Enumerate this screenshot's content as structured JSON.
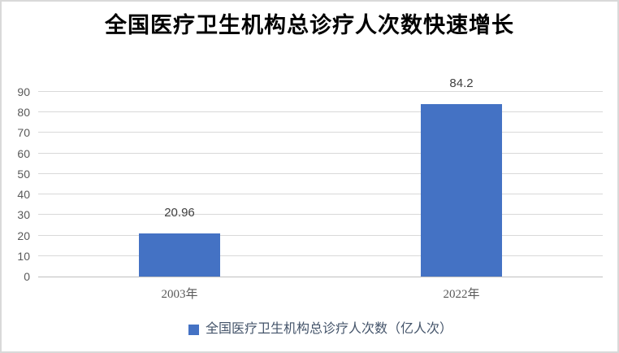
{
  "frame": {
    "background": "#FFFFFF",
    "border_color": "#D9D9D9"
  },
  "chart_data": {
    "type": "bar",
    "title": "全国医疗卫生机构总诊疗人次数快速增长",
    "categories": [
      "2003年",
      "2022年"
    ],
    "series": [
      {
        "name": "全国医疗卫生机构总诊疗人次数（亿人次）",
        "values": [
          20.96,
          84.2
        ]
      }
    ],
    "data_labels": [
      "20.96",
      "84.2"
    ],
    "xlabel": "",
    "ylabel": "",
    "ylim": [
      0,
      90
    ],
    "yticks": [
      0,
      10,
      20,
      30,
      40,
      50,
      60,
      70,
      80,
      90
    ],
    "grid": true,
    "legend_position": "bottom",
    "colors": {
      "bar": "#4472C4",
      "gridline": "#D9D9D9",
      "axis_line": "#BFBFBF",
      "title_text": "#000000",
      "tick_text": "#595959",
      "data_label_text": "#404040",
      "legend_text": "#44546A"
    }
  }
}
